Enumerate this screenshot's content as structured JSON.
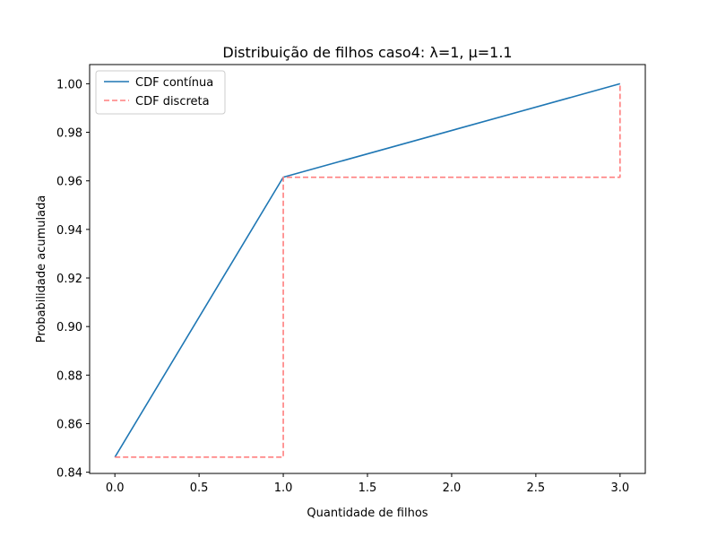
{
  "chart_data": {
    "type": "line",
    "title": "Distribuição de filhos caso4: λ=1, μ=1.1",
    "xlabel": "Quantidade de filhos",
    "ylabel": "Probabilidade acumulada",
    "xlim": [
      -0.15,
      3.15
    ],
    "ylim": [
      0.8395,
      1.0079
    ],
    "xticks": [
      0.0,
      0.5,
      1.0,
      1.5,
      2.0,
      2.5,
      3.0
    ],
    "xtick_labels": [
      "0.0",
      "0.5",
      "1.0",
      "1.5",
      "2.0",
      "2.5",
      "3.0"
    ],
    "yticks": [
      0.84,
      0.86,
      0.88,
      0.9,
      0.92,
      0.94,
      0.96,
      0.98,
      1.0
    ],
    "ytick_labels": [
      "0.84",
      "0.86",
      "0.88",
      "0.90",
      "0.92",
      "0.94",
      "0.96",
      "0.98",
      "1.00"
    ],
    "grid": false,
    "legend_position": "top-left",
    "series": [
      {
        "name": "CDF contínua",
        "style": "solid",
        "color": "#1f77b4",
        "x": [
          0,
          1,
          3
        ],
        "y": [
          0.8462,
          0.9615,
          1.0
        ]
      },
      {
        "name": "CDF discreta",
        "style": "dashed",
        "color": "#ff7f7f",
        "x": [
          0,
          1,
          1,
          3,
          3
        ],
        "y": [
          0.8462,
          0.8462,
          0.9615,
          0.9615,
          1.0
        ]
      }
    ]
  }
}
